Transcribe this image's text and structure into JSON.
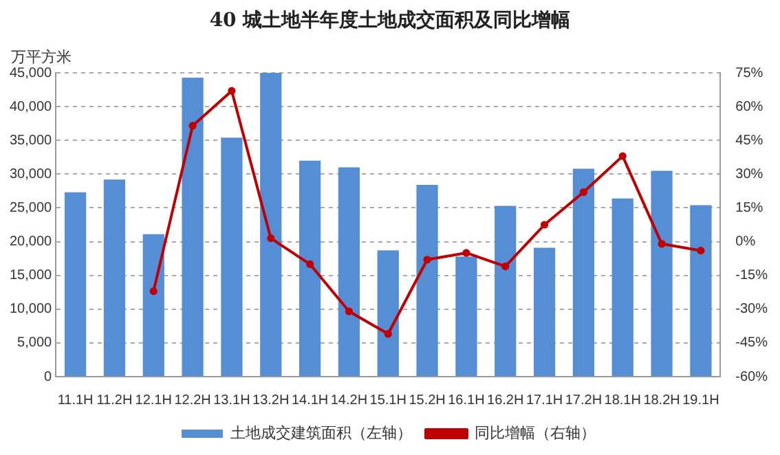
{
  "chart_data": {
    "type": "bar",
    "title": "40 城土地半年度土地成交面积及同比增幅",
    "ylabel": "万平方米",
    "categories": [
      "11.1H",
      "11.2H",
      "12.1H",
      "12.2H",
      "13.1H",
      "13.2H",
      "14.1H",
      "14.2H",
      "15.1H",
      "15.2H",
      "16.1H",
      "16.2H",
      "17.1H",
      "17.2H",
      "18.1H",
      "18.2H",
      "19.1H"
    ],
    "series": [
      {
        "name": "土地成交建筑面积（左轴）",
        "color": "#558ed5",
        "values": [
          27300,
          29200,
          21100,
          44300,
          35400,
          45000,
          32000,
          31000,
          18700,
          28400,
          17800,
          25300,
          19100,
          30800,
          26400,
          30500,
          25400
        ]
      },
      {
        "name": "同比增幅（右轴）",
        "type": "line",
        "axis": "y2",
        "color": "#c00000",
        "marker": "circle",
        "values": [
          null,
          null,
          -22,
          51.5,
          67,
          1.5,
          -10,
          -31,
          -41,
          -8,
          -5,
          -11,
          7.5,
          22,
          38,
          -1,
          -4
        ]
      }
    ],
    "ylim": [
      0,
      45000
    ],
    "yticks": [
      {
        "value": 0,
        "label": "0"
      },
      {
        "value": 5000,
        "label": "5,000"
      },
      {
        "value": 10000,
        "label": "10,000"
      },
      {
        "value": 15000,
        "label": "15,000"
      },
      {
        "value": 20000,
        "label": "20,000"
      },
      {
        "value": 25000,
        "label": "25,000"
      },
      {
        "value": 30000,
        "label": "30,000"
      },
      {
        "value": 35000,
        "label": "35,000"
      },
      {
        "value": 40000,
        "label": "40,000"
      },
      {
        "value": 45000,
        "label": "45,000"
      }
    ],
    "y2lim": [
      -60,
      75
    ],
    "y2ticks": [
      {
        "value": -60,
        "label": "-60%"
      },
      {
        "value": -45,
        "label": "-45%"
      },
      {
        "value": -30,
        "label": "-30%"
      },
      {
        "value": -15,
        "label": "-15%"
      },
      {
        "value": 0,
        "label": "0%"
      },
      {
        "value": 15,
        "label": "15%"
      },
      {
        "value": 30,
        "label": "30%"
      },
      {
        "value": 45,
        "label": "45%"
      },
      {
        "value": 60,
        "label": "60%"
      },
      {
        "value": 75,
        "label": "75%"
      }
    ],
    "grid": "y",
    "legend": "bottom"
  }
}
